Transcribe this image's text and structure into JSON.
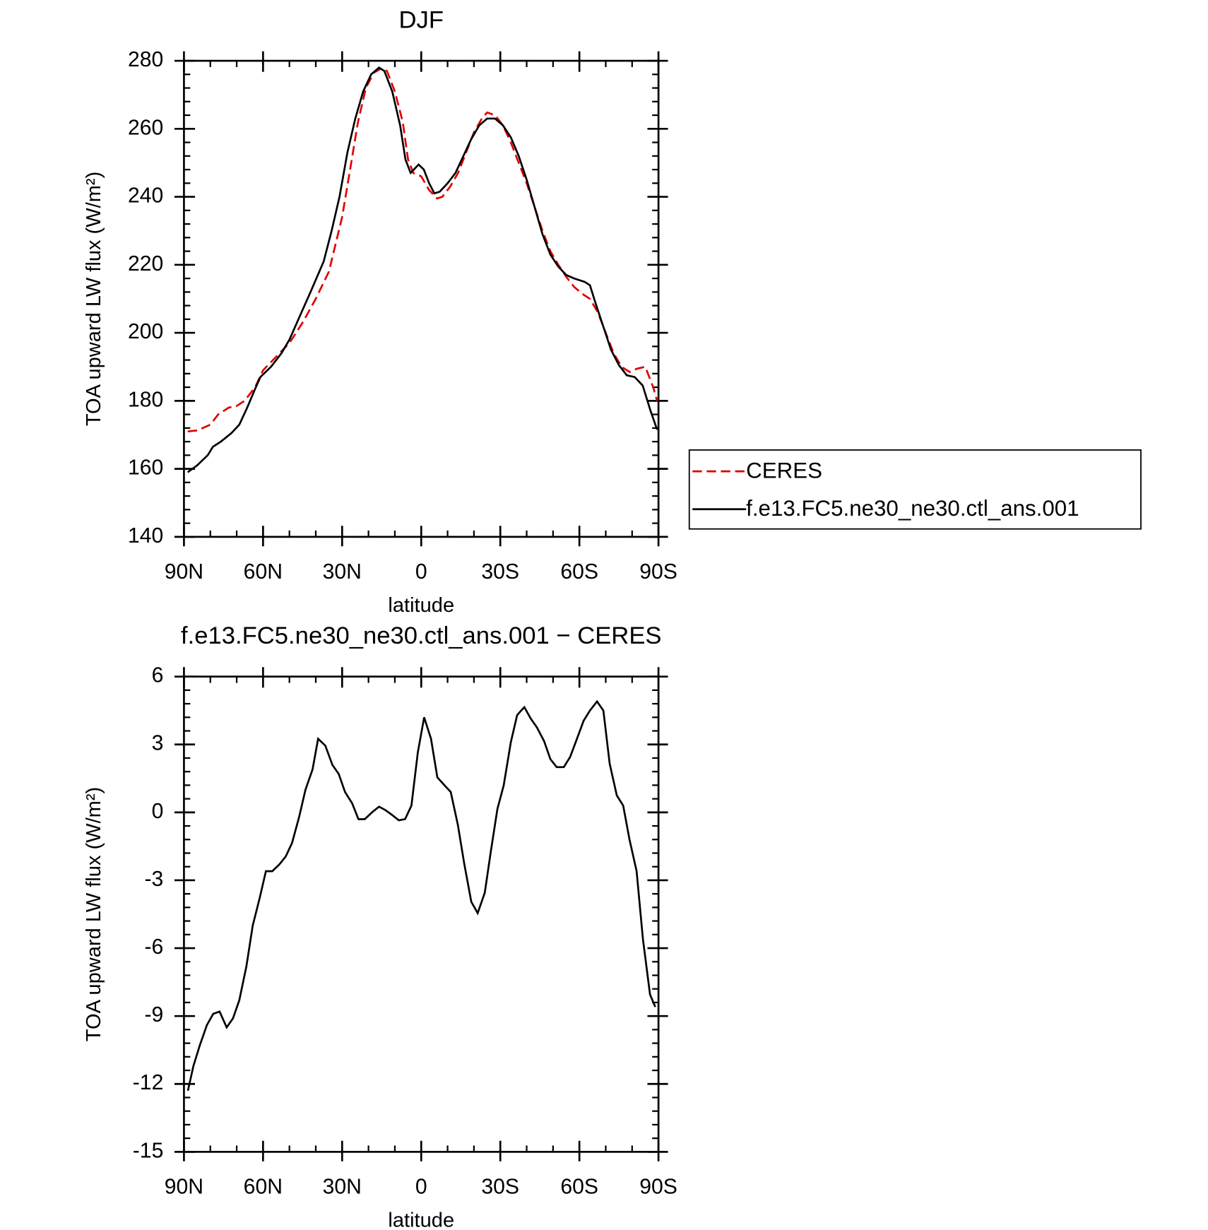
{
  "chart_data": [
    {
      "type": "line",
      "title": "DJF",
      "xlabel": "latitude",
      "ylabel": "TOA upward LW flux (W/m²)",
      "xlim": [
        90,
        -90
      ],
      "xticks": [
        {
          "value": 90,
          "label": "90N"
        },
        {
          "value": 60,
          "label": "60N"
        },
        {
          "value": 30,
          "label": "30N"
        },
        0,
        {
          "value": -30,
          "label": "30S"
        },
        {
          "value": -60,
          "label": "60S"
        },
        {
          "value": -90,
          "label": "90S"
        }
      ],
      "ylim": [
        140,
        280
      ],
      "yticks": [
        140,
        160,
        180,
        200,
        220,
        240,
        260,
        280
      ],
      "legend": "right",
      "series": [
        {
          "name": "CERES",
          "color": "#e00000",
          "linestyle": "dashed",
          "x": [
            88.6,
            85,
            80,
            77,
            73,
            70,
            67,
            63,
            60,
            55,
            50,
            45,
            40,
            35,
            30,
            27,
            24,
            21,
            18,
            15,
            13,
            10,
            7,
            5,
            3,
            0,
            -3,
            -6,
            -8,
            -11,
            -14,
            -17,
            -20,
            -23,
            -25,
            -28,
            -31,
            -34,
            -37,
            -40,
            -43,
            -46,
            -49,
            -52,
            -55,
            -58,
            -61,
            -64,
            -67,
            -70,
            -73,
            -76,
            -79,
            -82,
            -85,
            -88,
            -89.5
          ],
          "values": [
            171,
            171.3,
            173,
            176,
            178,
            178.5,
            180,
            184,
            189,
            193,
            197,
            203,
            210,
            218,
            234,
            248,
            262,
            272,
            276.5,
            277.8,
            277,
            271,
            262,
            251,
            247,
            246,
            242,
            239.5,
            240,
            243,
            247,
            253,
            259,
            263,
            264.8,
            264,
            261,
            256,
            250,
            244,
            237,
            230,
            224,
            220,
            216.5,
            213.5,
            211.5,
            210,
            206,
            200,
            194,
            190,
            188.5,
            189.5,
            190,
            184,
            180
          ]
        },
        {
          "name": "f.e13.FC5.ne30_ne30.ctl_ans.001",
          "color": "#000000",
          "linestyle": "solid",
          "x": [
            88.6,
            85,
            81,
            79,
            76,
            72,
            69,
            66,
            63,
            61,
            57,
            53,
            50,
            46,
            42,
            37,
            34,
            31,
            28,
            25,
            22,
            19,
            16,
            14,
            11,
            8,
            6,
            4,
            1,
            -1,
            -3,
            -5,
            -7,
            -10,
            -13,
            -16,
            -19,
            -22,
            -25,
            -28,
            -31,
            -34,
            -37,
            -40,
            -43,
            -46,
            -49,
            -52,
            -55,
            -58,
            -62,
            -64,
            -66,
            -69,
            -72,
            -75,
            -78,
            -81,
            -84,
            -87,
            -89.5
          ],
          "values": [
            159,
            161,
            164,
            166.5,
            168,
            170.5,
            173,
            178,
            183.5,
            187,
            190,
            194,
            198,
            205,
            212,
            221,
            230,
            240,
            253,
            263,
            271,
            276,
            278,
            277,
            271,
            261,
            251,
            247,
            249.5,
            248,
            244,
            241,
            241.5,
            244,
            247,
            252,
            257,
            261,
            263,
            263,
            261,
            257.5,
            252,
            245,
            237,
            229,
            223,
            219.5,
            217,
            216,
            215,
            214,
            209,
            202,
            195,
            190.5,
            187.5,
            187,
            184.5,
            177,
            171.5
          ]
        }
      ]
    },
    {
      "type": "line",
      "title": "f.e13.FC5.ne30_ne30.ctl_ans.001 − CERES",
      "xlabel": "latitude",
      "ylabel": "TOA upward LW flux (W/m²)",
      "xlim": [
        90,
        -90
      ],
      "xticks": [
        {
          "value": 90,
          "label": "90N"
        },
        {
          "value": 60,
          "label": "60N"
        },
        {
          "value": 30,
          "label": "30N"
        },
        0,
        {
          "value": -30,
          "label": "30S"
        },
        {
          "value": -60,
          "label": "60S"
        },
        {
          "value": -90,
          "label": "90S"
        }
      ],
      "ylim": [
        -15,
        6
      ],
      "yticks": [
        -15,
        -12,
        -9,
        -6,
        -3,
        0,
        3,
        6
      ],
      "series": [
        {
          "color": "#000000",
          "linestyle": "solid",
          "x": [
            88.5,
            86.4,
            84,
            81.3,
            78.9,
            76.5,
            73.8,
            71.4,
            69,
            66.3,
            63.9,
            61.3,
            58.9,
            56.5,
            53.8,
            51.4,
            49,
            46.3,
            43.9,
            41.2,
            39.1,
            36.4,
            33.7,
            31.3,
            28.9,
            26.2,
            23.8,
            21.4,
            18.7,
            16,
            13.6,
            11.2,
            8.5,
            6.1,
            3.7,
            1.3,
            -1.1,
            -3.7,
            -6.1,
            -8.8,
            -11.2,
            -13.9,
            -16.3,
            -19,
            -21.4,
            -24.1,
            -26.5,
            -28.9,
            -31.3,
            -34,
            -36.4,
            -39.1,
            -41.5,
            -43.9,
            -46.6,
            -49,
            -51.4,
            -54.1,
            -56.5,
            -58.9,
            -61.6,
            -64,
            -66.7,
            -69.1,
            -71.5,
            -74.2,
            -76.6,
            -79,
            -81.7,
            -84.1,
            -86.8,
            -88.8
          ],
          "values": [
            -12.3,
            -11.2,
            -10.3,
            -9.4,
            -8.9,
            -8.8,
            -9.5,
            -9.1,
            -8.3,
            -6.8,
            -5,
            -3.8,
            -2.6,
            -2.6,
            -2.3,
            -1.95,
            -1.35,
            -0.2,
            1,
            1.9,
            3.25,
            2.95,
            2.1,
            1.7,
            0.9,
            0.4,
            -0.3,
            -0.3,
            0,
            0.25,
            0.1,
            -0.1,
            -0.35,
            -0.3,
            0.3,
            2.65,
            4.2,
            3.25,
            1.55,
            1.2,
            0.9,
            -0.55,
            -2.25,
            -3.95,
            -4.45,
            -3.55,
            -1.65,
            0.15,
            1.2,
            3.1,
            4.3,
            4.65,
            4.15,
            3.75,
            3.15,
            2.35,
            2,
            2,
            2.45,
            3.2,
            4.05,
            4.5,
            4.9,
            4.5,
            2.15,
            0.75,
            0.3,
            -1.2,
            -2.6,
            -5.6,
            -8.05,
            -8.6
          ]
        }
      ]
    }
  ]
}
